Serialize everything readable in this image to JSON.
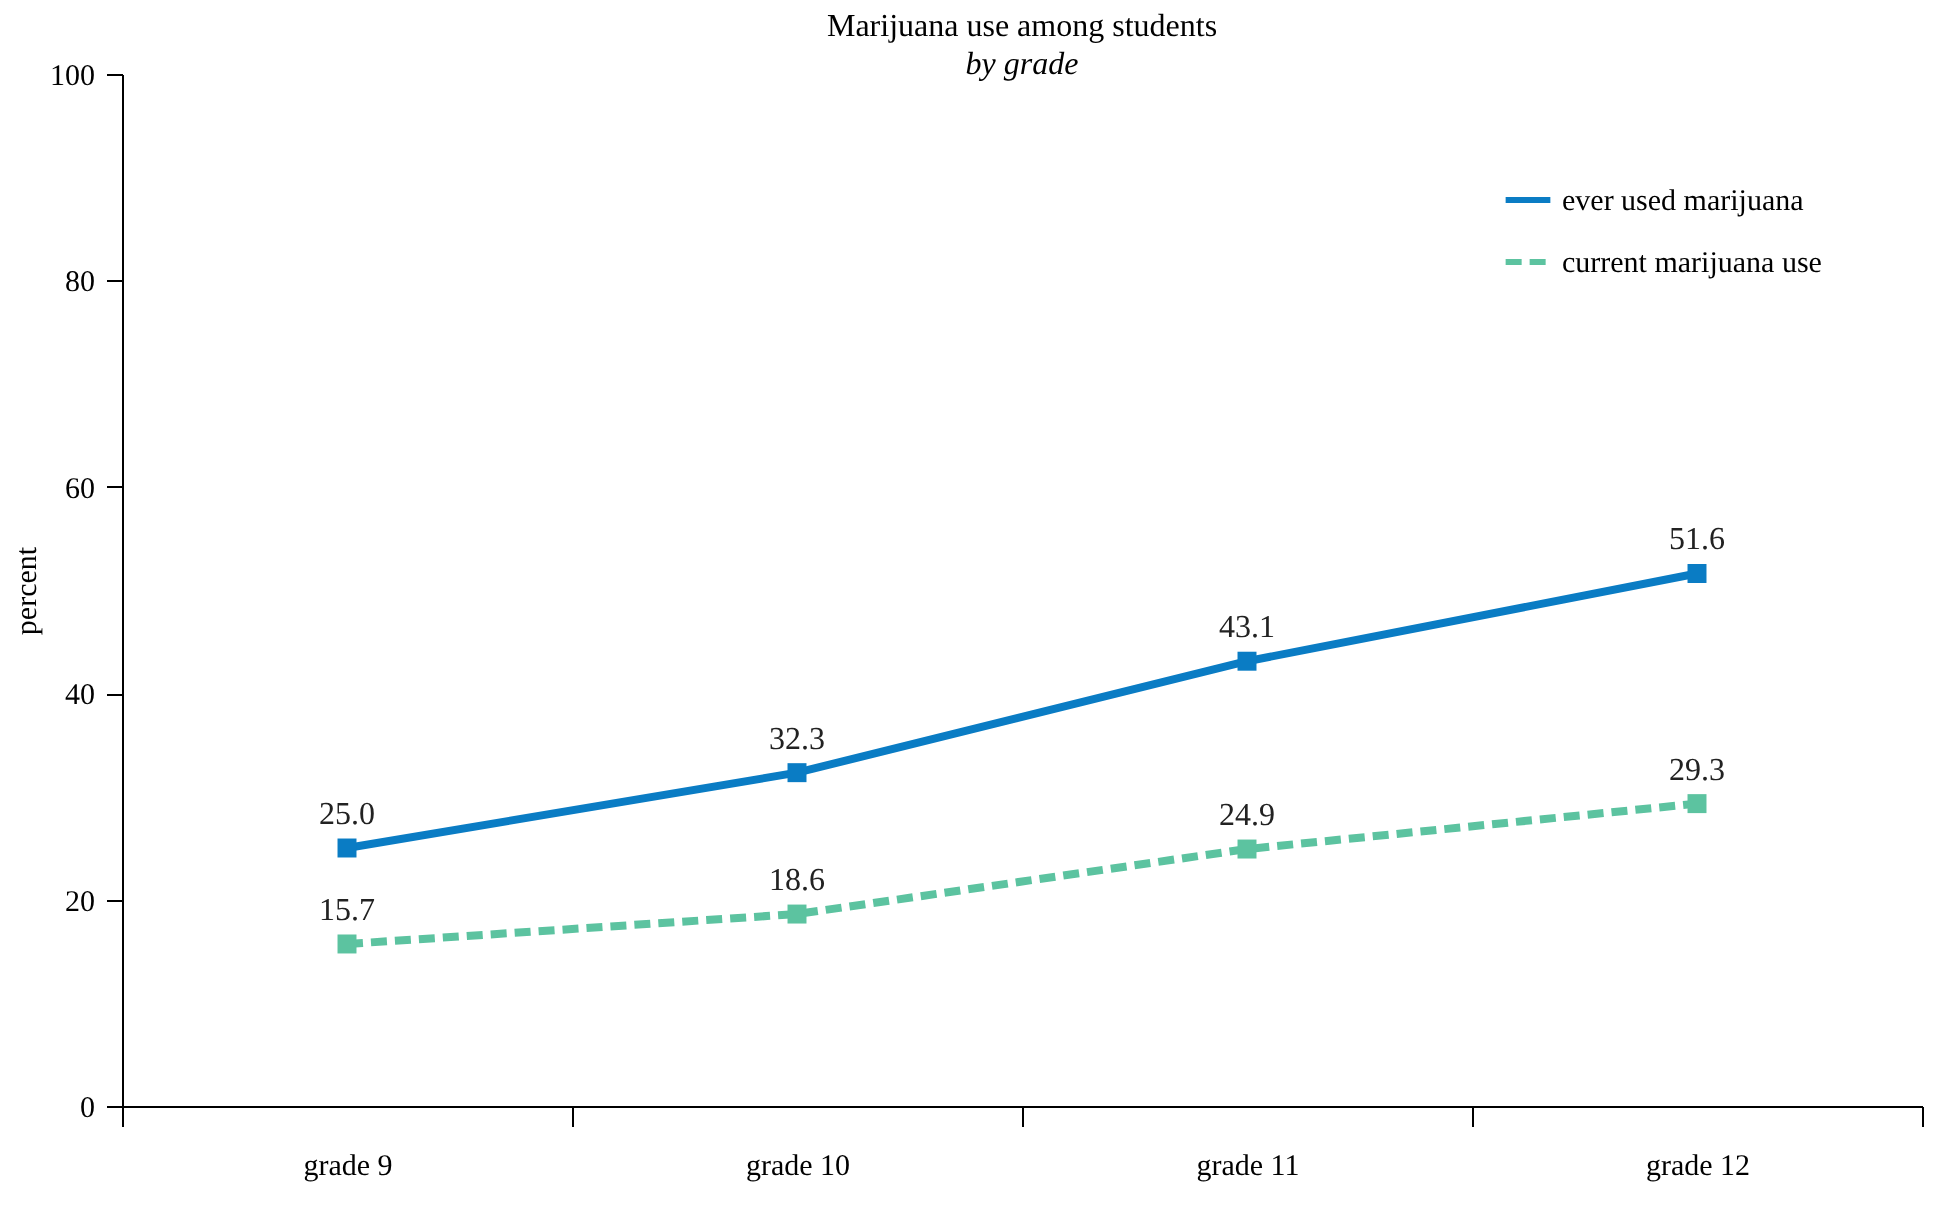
{
  "chart_data": {
    "type": "line",
    "title": "Marijuana use among students",
    "subtitle": "by grade",
    "ylabel": "percent",
    "categories": [
      "grade 9",
      "grade 10",
      "grade 11",
      "grade 12"
    ],
    "series": [
      {
        "name": "ever used marijuana",
        "color": "#0a7cc4",
        "values": [
          25.0,
          32.3,
          43.1,
          51.6
        ],
        "value_labels": [
          "25.0",
          "32.3",
          "43.1",
          "51.6"
        ],
        "line_style": "solid"
      },
      {
        "name": "current marijuana use",
        "color": "#5cc3a0",
        "values": [
          15.7,
          18.6,
          24.9,
          29.3
        ],
        "value_labels": [
          "15.7",
          "18.6",
          "24.9",
          "29.3"
        ],
        "line_style": "dashed"
      }
    ],
    "ylim": [
      0,
      100
    ],
    "yticks": [
      0,
      20,
      40,
      60,
      80,
      100
    ],
    "grid": false,
    "legend": "top right",
    "marker": "square"
  }
}
